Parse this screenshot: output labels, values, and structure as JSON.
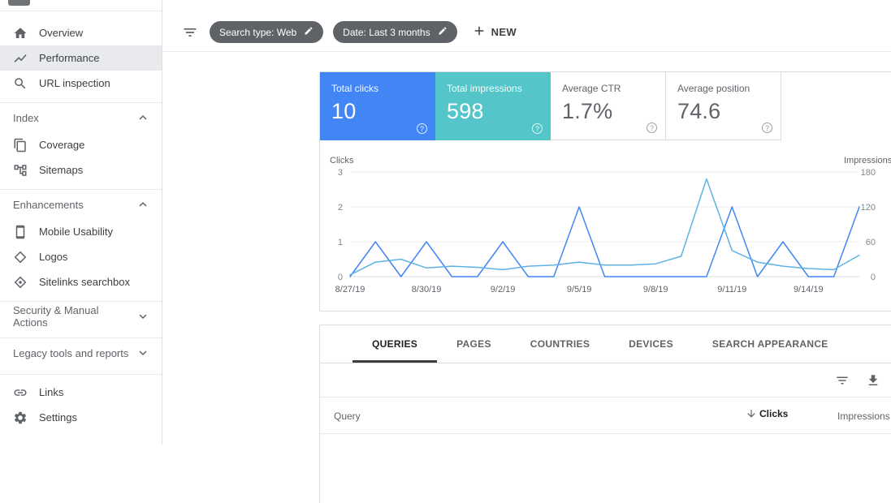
{
  "sidebar": {
    "groups": [
      {
        "items": [
          {
            "label": "Overview",
            "icon": "home-icon",
            "selected": false
          },
          {
            "label": "Performance",
            "icon": "trending-up-icon",
            "selected": true
          },
          {
            "label": "URL inspection",
            "icon": "search-icon",
            "selected": false
          }
        ]
      },
      {
        "header": "Index",
        "state": "expanded",
        "items": [
          {
            "label": "Coverage",
            "icon": "pages-icon"
          },
          {
            "label": "Sitemaps",
            "icon": "sitemap-icon"
          }
        ]
      },
      {
        "header": "Enhancements",
        "state": "expanded",
        "items": [
          {
            "label": "Mobile Usability",
            "icon": "smartphone-icon"
          },
          {
            "label": "Logos",
            "icon": "diamond-icon"
          },
          {
            "label": "Sitelinks searchbox",
            "icon": "diamond-search-icon"
          }
        ]
      },
      {
        "header": "Security & Manual Actions",
        "state": "collapsed",
        "items": []
      },
      {
        "header": "Legacy tools and reports",
        "state": "collapsed",
        "items": []
      },
      {
        "items": [
          {
            "label": "Links",
            "icon": "links-icon"
          },
          {
            "label": "Settings",
            "icon": "gear-icon"
          }
        ]
      }
    ]
  },
  "toolbar": {
    "filters": [
      {
        "label": "Search type: Web"
      },
      {
        "label": "Date: Last 3 months"
      }
    ],
    "new_button": {
      "label": "NEW"
    }
  },
  "metrics": {
    "cards": [
      {
        "label": "Total clicks",
        "value": "10",
        "color": "#4285f4",
        "selected": true
      },
      {
        "label": "Total impressions",
        "value": "598",
        "color": "#54c5c8",
        "selected": true
      },
      {
        "label": "Average CTR",
        "value": "1.7%",
        "selected": false
      },
      {
        "label": "Average position",
        "value": "74.6",
        "selected": false
      }
    ]
  },
  "chart_data": {
    "type": "line",
    "x": [
      "8/27/19",
      "8/28/19",
      "8/29/19",
      "8/30/19",
      "8/31/19",
      "9/1/19",
      "9/2/19",
      "9/3/19",
      "9/4/19",
      "9/5/19",
      "9/6/19",
      "9/7/19",
      "9/8/19",
      "9/9/19",
      "9/10/19",
      "9/11/19",
      "9/12/19",
      "9/13/19",
      "9/14/19",
      "9/15/19",
      "9/16/19"
    ],
    "x_tick_labels": [
      "8/27/19",
      "8/30/19",
      "9/2/19",
      "9/5/19",
      "9/8/19",
      "9/11/19",
      "9/14/19"
    ],
    "series": [
      {
        "name": "Clicks",
        "axis": "left",
        "color": "#4285f4",
        "values": [
          0,
          1,
          0,
          1,
          0,
          0,
          1,
          0,
          0,
          2,
          0,
          0,
          0,
          0,
          0,
          2,
          0,
          1,
          0,
          0,
          2
        ]
      },
      {
        "name": "Impressions",
        "axis": "right",
        "color": "#5fb2e5",
        "values": [
          3,
          25,
          30,
          15,
          18,
          16,
          12,
          18,
          20,
          25,
          20,
          20,
          22,
          35,
          168,
          45,
          25,
          18,
          14,
          12,
          37
        ]
      }
    ],
    "left_axis": {
      "label": "Clicks",
      "range": [
        0,
        3
      ],
      "ticks": [
        0,
        1,
        2,
        3
      ]
    },
    "right_axis": {
      "label": "Impressions",
      "range": [
        0,
        180
      ],
      "ticks": [
        0,
        60,
        120,
        180
      ]
    },
    "grid": "horizontal",
    "legend_position": "none"
  },
  "table": {
    "tabs": [
      {
        "label": "QUERIES",
        "active": true
      },
      {
        "label": "PAGES",
        "active": false
      },
      {
        "label": "COUNTRIES",
        "active": false
      },
      {
        "label": "DEVICES",
        "active": false
      },
      {
        "label": "SEARCH APPEARANCE",
        "active": false
      }
    ],
    "header": {
      "query": "Query",
      "clicks": "Clicks",
      "impressions": "Impressions"
    },
    "sort": {
      "column": "Clicks",
      "direction": "desc"
    }
  }
}
